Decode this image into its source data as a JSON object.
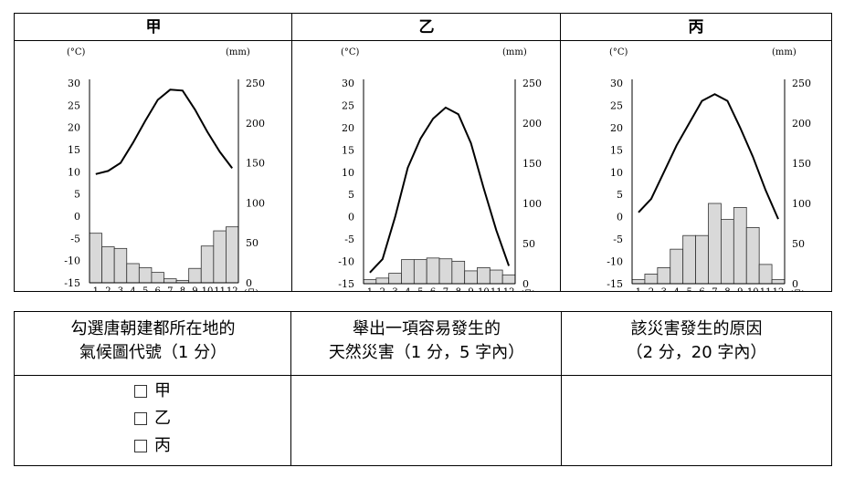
{
  "chart_data": [
    {
      "type": "bar+line",
      "title": "甲",
      "temp_unit": "(°C)",
      "precip_unit": "(mm)",
      "month_unit": "(月)",
      "temp_ticks": [
        "30",
        "25",
        "20",
        "15",
        "10",
        "5",
        "0",
        "-5",
        "-10",
        "-15"
      ],
      "precip_ticks": [
        "250",
        "200",
        "150",
        "100",
        "50",
        "0"
      ],
      "months": [
        "1",
        "2",
        "3",
        "4",
        "5",
        "6",
        "7",
        "8",
        "9",
        "10",
        "11",
        "12"
      ],
      "temp_range": [
        -15,
        30
      ],
      "precip_range": [
        0,
        250
      ],
      "temperature": [
        9.5,
        10.2,
        12.0,
        16.5,
        21.5,
        26.2,
        28.5,
        28.3,
        24.0,
        19.0,
        14.5,
        10.8
      ],
      "precipitation": [
        62,
        45,
        43,
        24,
        19,
        13,
        5,
        3,
        18,
        46,
        65,
        70
      ]
    },
    {
      "type": "bar+line",
      "title": "乙",
      "temp_unit": "(°C)",
      "precip_unit": "(mm)",
      "month_unit": "(月)",
      "temp_ticks": [
        "30",
        "25",
        "20",
        "15",
        "10",
        "5",
        "0",
        "-5",
        "-10",
        "-15"
      ],
      "precip_ticks": [
        "250",
        "200",
        "150",
        "100",
        "50",
        "0"
      ],
      "months": [
        "1",
        "2",
        "3",
        "4",
        "5",
        "6",
        "7",
        "8",
        "9",
        "10",
        "11",
        "12"
      ],
      "temp_range": [
        -15,
        30
      ],
      "precip_range": [
        0,
        250
      ],
      "temperature": [
        -12.5,
        -9.5,
        0.0,
        11.0,
        17.5,
        22.0,
        24.5,
        23.0,
        16.5,
        6.5,
        -3.0,
        -11.0
      ],
      "precipitation": [
        5,
        7,
        13,
        30,
        30,
        32,
        31,
        28,
        16,
        20,
        17,
        11
      ]
    },
    {
      "type": "bar+line",
      "title": "丙",
      "temp_unit": "(°C)",
      "precip_unit": "(mm)",
      "month_unit": "(月)",
      "temp_ticks": [
        "30",
        "25",
        "20",
        "15",
        "10",
        "5",
        "0",
        "-5",
        "-10",
        "-15"
      ],
      "precip_ticks": [
        "250",
        "200",
        "150",
        "100",
        "50",
        "0"
      ],
      "months": [
        "1",
        "2",
        "3",
        "4",
        "5",
        "6",
        "7",
        "8",
        "9",
        "10",
        "11",
        "12"
      ],
      "temp_range": [
        -15,
        30
      ],
      "precip_range": [
        0,
        250
      ],
      "temperature": [
        1.0,
        4.0,
        10.0,
        16.0,
        21.0,
        26.0,
        27.5,
        26.0,
        20.0,
        13.5,
        6.0,
        -0.5
      ],
      "precipitation": [
        5,
        12,
        20,
        43,
        60,
        60,
        100,
        80,
        95,
        70,
        24,
        5
      ]
    }
  ],
  "headers": [
    "甲",
    "乙",
    "丙"
  ],
  "questions": {
    "q1_line1": "勾選唐朝建都所在地的",
    "q1_line2": "氣候圖代號（1 分）",
    "q2_line1": "舉出一項容易發生的",
    "q2_line2": "天然災害（1 分，5 字內）",
    "q3_line1": "該災害發生的原因",
    "q3_line2": "（2 分，20 字內）"
  },
  "options": [
    "甲",
    "乙",
    "丙"
  ]
}
